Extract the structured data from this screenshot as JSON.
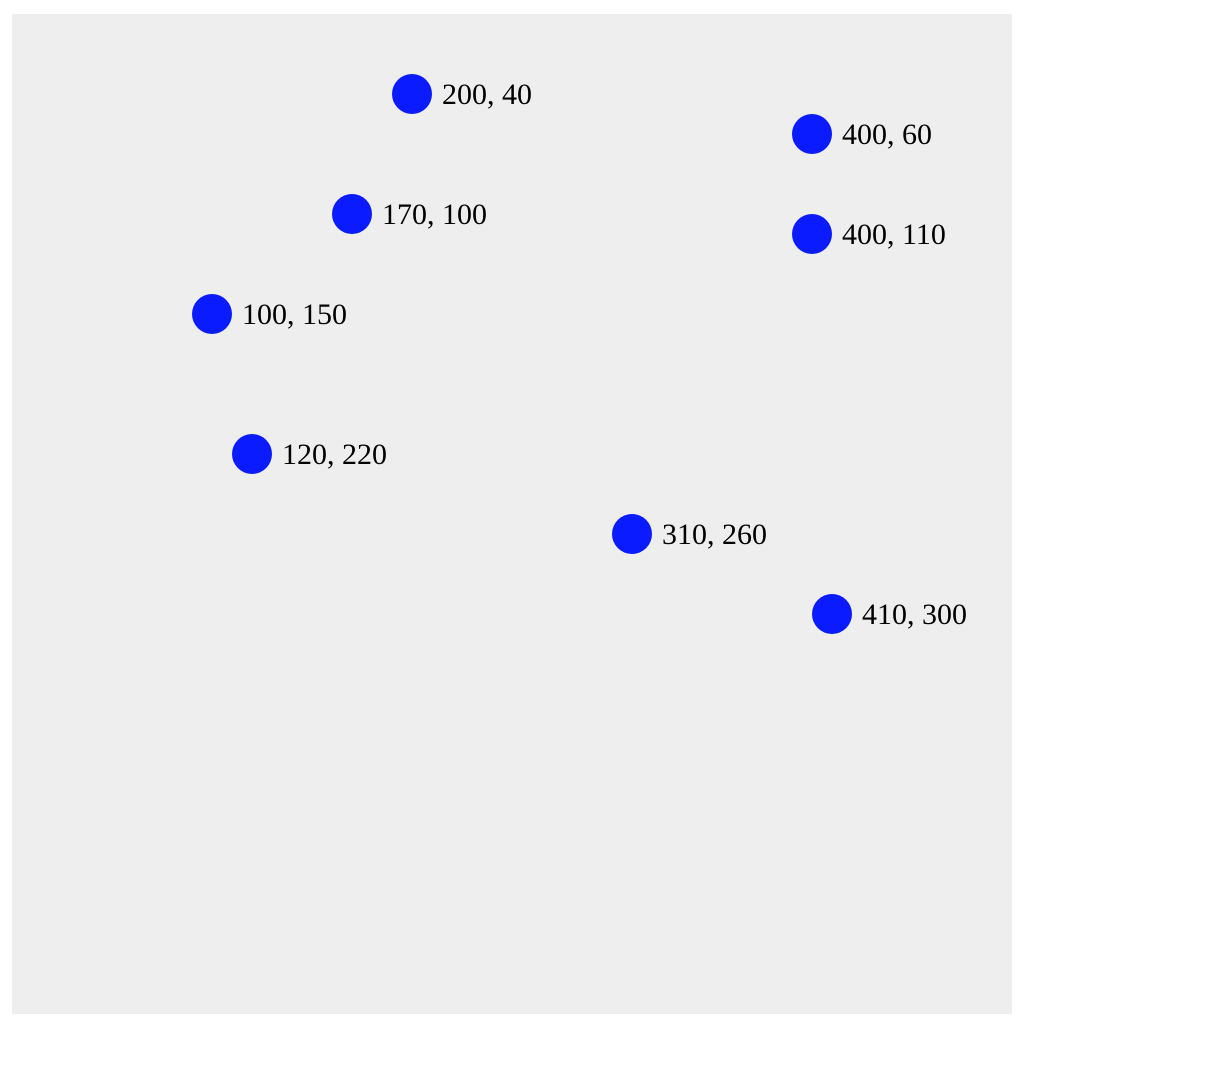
{
  "chart_data": {
    "type": "scatter",
    "title": "",
    "xlabel": "",
    "ylabel": "",
    "xlim": [
      0,
      500
    ],
    "ylim": [
      0,
      500
    ],
    "y_direction": "down",
    "grid": false,
    "marker_color": "#0a1cff",
    "background_color": "#eeeeee",
    "points": [
      {
        "x": 200,
        "y": 40,
        "label": "200, 40"
      },
      {
        "x": 400,
        "y": 60,
        "label": "400, 60"
      },
      {
        "x": 170,
        "y": 100,
        "label": "170, 100"
      },
      {
        "x": 400,
        "y": 110,
        "label": "400, 110"
      },
      {
        "x": 100,
        "y": 150,
        "label": "100, 150"
      },
      {
        "x": 120,
        "y": 220,
        "label": "120, 220"
      },
      {
        "x": 310,
        "y": 260,
        "label": "310, 260"
      },
      {
        "x": 410,
        "y": 300,
        "label": "410, 300"
      }
    ]
  }
}
